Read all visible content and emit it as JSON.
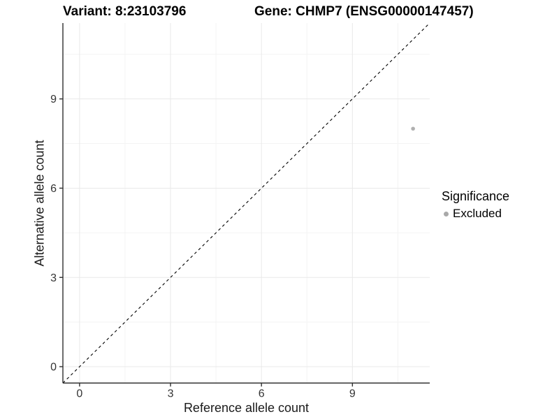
{
  "header": {
    "variant_title": "Variant: 8:23103796",
    "gene_title": "Gene: CHMP7 (ENSG00000147457)"
  },
  "chart_data": {
    "type": "scatter",
    "xlabel": "Reference allele count",
    "ylabel": "Alternative allele count",
    "xlim": [
      -0.55,
      11.55
    ],
    "ylim": [
      -0.55,
      11.55
    ],
    "x_ticks": [
      0,
      3,
      6,
      9
    ],
    "y_ticks": [
      0,
      3,
      6,
      9
    ],
    "x_minor_ticks": [
      1.5,
      4.5,
      7.5,
      10.5
    ],
    "y_minor_ticks": [
      1.5,
      4.5,
      7.5,
      10.5
    ],
    "grid": true,
    "identity_line": {
      "type": "y=x",
      "style": "dashed",
      "color": "#000000"
    },
    "series": [
      {
        "name": "Excluded",
        "color": "#b0b0b0",
        "points": [
          {
            "x": 11,
            "y": 8
          }
        ]
      }
    ],
    "legend": {
      "title": "Significance",
      "position": "right",
      "entries": [
        {
          "label": "Excluded",
          "color": "#a9a9a9"
        }
      ]
    }
  },
  "colors": {
    "background": "#ffffff",
    "grid_major": "#e9e9e9",
    "grid_minor": "#f4f4f4",
    "axis_line": "#2f2f2f",
    "tick_label": "#333333"
  }
}
